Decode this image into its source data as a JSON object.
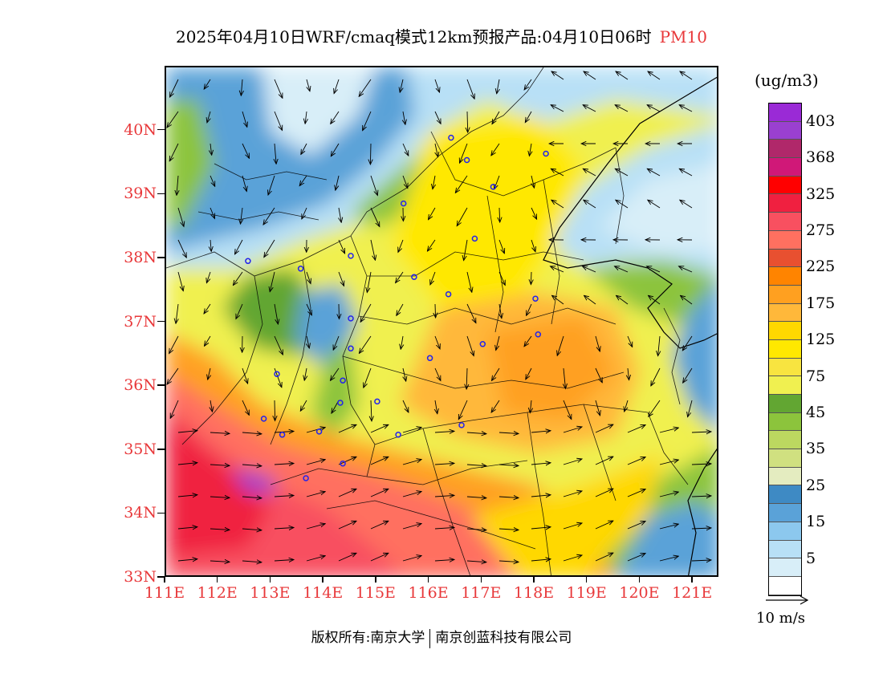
{
  "title": {
    "main": "2025年04月10日WRF/cmaq模式12km预报产品:04月10日06时",
    "variable": "PM10"
  },
  "latitude_labels": [
    "40N",
    "39N",
    "38N",
    "37N",
    "36N",
    "35N",
    "34N",
    "33N"
  ],
  "longitude_labels": [
    "111E",
    "112E",
    "113E",
    "114E",
    "115E",
    "116E",
    "117E",
    "118E",
    "119E",
    "120E",
    "121E"
  ],
  "colorbar": {
    "unit": "(ug/m3)",
    "labels": [
      "403",
      "368",
      "325",
      "275",
      "225",
      "175",
      "125",
      "75",
      "45",
      "35",
      "25",
      "15",
      "5"
    ],
    "colors": [
      "#9a2ad6",
      "#9a40d0",
      "#b0286a",
      "#d01878",
      "#ff0000",
      "#f02040",
      "#f85060",
      "#ff7060",
      "#e85030",
      "#ff8400",
      "#ffa020",
      "#ffb83a",
      "#ffd800",
      "#ffe800",
      "#f8e440",
      "#f0f050",
      "#62a632",
      "#8cc43c",
      "#bcd860",
      "#d0e080",
      "#e4ecc0",
      "#3e8ac4",
      "#5aa2d8",
      "#8cc8ee",
      "#b8e0f6",
      "#d8eef8",
      "#ffffff"
    ]
  },
  "wind_reference": {
    "label": "10 m/s"
  },
  "stations": [
    {
      "lon": 116.4,
      "lat": 39.9
    },
    {
      "lon": 116.7,
      "lat": 39.55
    },
    {
      "lon": 117.2,
      "lat": 39.13
    },
    {
      "lon": 118.2,
      "lat": 39.65
    },
    {
      "lon": 115.5,
      "lat": 38.87
    },
    {
      "lon": 116.85,
      "lat": 38.32
    },
    {
      "lon": 114.5,
      "lat": 38.05
    },
    {
      "lon": 115.7,
      "lat": 37.72
    },
    {
      "lon": 116.35,
      "lat": 37.45
    },
    {
      "lon": 118.0,
      "lat": 37.38
    },
    {
      "lon": 112.55,
      "lat": 37.97
    },
    {
      "lon": 113.55,
      "lat": 37.85
    },
    {
      "lon": 114.5,
      "lat": 37.07
    },
    {
      "lon": 114.5,
      "lat": 36.6
    },
    {
      "lon": 116.0,
      "lat": 36.45
    },
    {
      "lon": 117.0,
      "lat": 36.67
    },
    {
      "lon": 118.05,
      "lat": 36.82
    },
    {
      "lon": 113.1,
      "lat": 36.2
    },
    {
      "lon": 114.35,
      "lat": 36.1
    },
    {
      "lon": 114.3,
      "lat": 35.75
    },
    {
      "lon": 115.0,
      "lat": 35.77
    },
    {
      "lon": 112.85,
      "lat": 35.5
    },
    {
      "lon": 113.2,
      "lat": 35.25
    },
    {
      "lon": 113.9,
      "lat": 35.3
    },
    {
      "lon": 115.4,
      "lat": 35.25
    },
    {
      "lon": 116.6,
      "lat": 35.4
    },
    {
      "lon": 114.35,
      "lat": 34.8
    },
    {
      "lon": 113.65,
      "lat": 34.57
    }
  ],
  "footer": {
    "copyright": "版权所有:南京大学",
    "company": "南京创蓝科技有限公司"
  }
}
